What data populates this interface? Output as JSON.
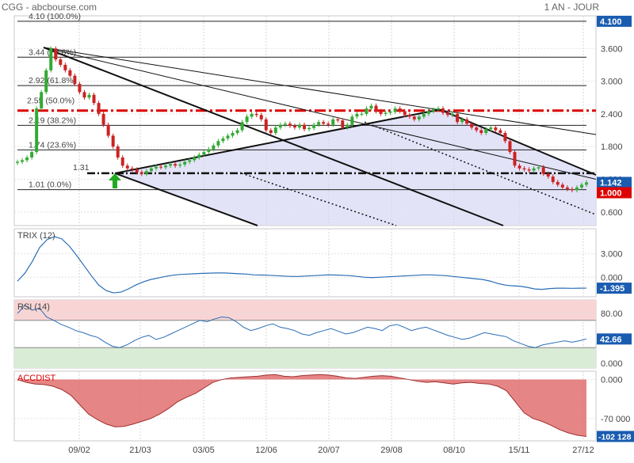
{
  "header": {
    "title": "CGG - abcbourse.com",
    "period": "1 AN - JOUR"
  },
  "colors": {
    "up_candle": "#33aa33",
    "down_candle": "#cc2222",
    "indicator_line": "#2a6db5",
    "fib_red": "#dd0000",
    "channel_fill": "#dcdcf6",
    "rsi_overbought": "#f8d4d4",
    "rsi_oversold": "#d9ecd6",
    "accdist_fill": "#e07070",
    "badge_bg": "#1a5cb0",
    "badge_red": "#dd0000",
    "badge_green": "#22aa00"
  },
  "chart_data": [
    {
      "type": "candlestick",
      "x_ticks": [
        "09/02",
        "21/03",
        "03/05",
        "12/06",
        "20/07",
        "29/08",
        "08/10",
        "15/11",
        "27/12"
      ],
      "y_ticks": [
        "3.600",
        "3.000",
        "2.400",
        "1.800",
        "1.200",
        "0.600"
      ],
      "ylim": [
        0.35,
        4.2
      ],
      "fibonacci": [
        {
          "value": 4.1,
          "label": "4.10  (100.0%)"
        },
        {
          "value": 3.44,
          "label": "3.44  (78.6%)"
        },
        {
          "value": 2.92,
          "label": "2.92  (61.8%)"
        },
        {
          "value": 2.55,
          "label": "2.55  (50.0%)"
        },
        {
          "value": 2.19,
          "label": "2.19  (38.2%)"
        },
        {
          "value": 1.74,
          "label": "1.74  (23.6%)"
        },
        {
          "value": 1.01,
          "label": "1.01  (0.0%)"
        }
      ],
      "marker_label": "1.31",
      "last_close": "1.142",
      "price_badges": [
        "4.100",
        "1.142",
        "1.000"
      ],
      "close_series": [
        1.52,
        1.55,
        1.6,
        1.7,
        2.5,
        2.8,
        3.2,
        3.6,
        3.4,
        3.3,
        3.2,
        3.1,
        2.95,
        2.8,
        2.7,
        2.75,
        2.6,
        2.4,
        2.2,
        2.0,
        1.8,
        1.6,
        1.45,
        1.4,
        1.38,
        1.33,
        1.3,
        1.35,
        1.4,
        1.43,
        1.42,
        1.45,
        1.48,
        1.45,
        1.47,
        1.52,
        1.55,
        1.6,
        1.65,
        1.7,
        1.75,
        1.82,
        1.9,
        1.95,
        2.0,
        2.05,
        2.1,
        2.25,
        2.35,
        2.4,
        2.38,
        2.3,
        2.1,
        2.05,
        2.15,
        2.2,
        2.22,
        2.18,
        2.15,
        2.2,
        2.12,
        2.14,
        2.2,
        2.25,
        2.22,
        2.2,
        2.3,
        2.28,
        2.15,
        2.2,
        2.35,
        2.4,
        2.4,
        2.5,
        2.55,
        2.45,
        2.4,
        2.42,
        2.44,
        2.5,
        2.45,
        2.38,
        2.35,
        2.3,
        2.35,
        2.4,
        2.45,
        2.48,
        2.5,
        2.42,
        2.38,
        2.4,
        2.25,
        2.3,
        2.22,
        2.15,
        2.1,
        2.05,
        2.12,
        2.15,
        2.1,
        2.05,
        1.9,
        1.7,
        1.45,
        1.4,
        1.38,
        1.36,
        1.4,
        1.42,
        1.3,
        1.25,
        1.15,
        1.1,
        1.05,
        1.02,
        1.0,
        1.05,
        1.1,
        1.142
      ]
    },
    {
      "type": "line",
      "title": "TRIX (12)",
      "y_ticks": [
        "3.000",
        "0.000"
      ],
      "ylim": [
        -2.5,
        6.2
      ],
      "last_value": "-1.395",
      "values": [
        -0.5,
        0.5,
        2.0,
        3.8,
        4.8,
        5.2,
        4.9,
        4.0,
        2.8,
        1.5,
        0.2,
        -1.0,
        -1.7,
        -2.0,
        -1.9,
        -1.5,
        -1.0,
        -0.6,
        -0.3,
        -0.1,
        0.1,
        0.25,
        0.35,
        0.4,
        0.45,
        0.5,
        0.52,
        0.55,
        0.55,
        0.5,
        0.45,
        0.4,
        0.3,
        0.28,
        0.25,
        0.2,
        0.15,
        0.1,
        0.1,
        0.15,
        0.2,
        0.25,
        0.3,
        0.28,
        0.25,
        0.2,
        0.1,
        0.0,
        -0.05,
        0.0,
        0.05,
        0.1,
        0.15,
        0.2,
        0.25,
        0.3,
        0.3,
        0.25,
        0.2,
        0.1,
        0.0,
        -0.1,
        -0.2,
        -0.3,
        -0.5,
        -0.8,
        -1.0,
        -1.1,
        -1.15,
        -1.3,
        -1.5,
        -1.55,
        -1.45,
        -1.4,
        -1.4,
        -1.42,
        -1.4,
        -1.395
      ]
    },
    {
      "type": "line",
      "title": "RSI (14)",
      "y_ticks": [
        "80.00",
        "0.000"
      ],
      "ylim": [
        0,
        100
      ],
      "last_value": "42.66",
      "values": [
        80,
        92,
        85,
        88,
        75,
        70,
        64,
        60,
        55,
        52,
        48,
        45,
        38,
        32,
        30,
        34,
        40,
        45,
        48,
        42,
        45,
        50,
        55,
        60,
        65,
        70,
        68,
        72,
        75,
        74,
        68,
        60,
        55,
        58,
        62,
        65,
        60,
        58,
        55,
        50,
        48,
        52,
        55,
        58,
        54,
        50,
        52,
        56,
        60,
        58,
        55,
        62,
        64,
        60,
        55,
        58,
        60,
        56,
        52,
        48,
        45,
        42,
        44,
        48,
        52,
        50,
        48,
        46,
        40,
        36,
        32,
        30,
        34,
        36,
        38,
        40,
        38,
        40,
        42.66
      ]
    },
    {
      "type": "area",
      "title": "ACCDIST",
      "y_ticks": [
        "0.000",
        "-70 000"
      ],
      "ylim": [
        -110000,
        15000
      ],
      "last_value": "-102 128",
      "values": [
        0,
        -5000,
        -8000,
        -9000,
        -12000,
        -18000,
        -28000,
        -45000,
        -62000,
        -72000,
        -80000,
        -85000,
        -84000,
        -80000,
        -75000,
        -70000,
        -62000,
        -52000,
        -40000,
        -32000,
        -25000,
        -15000,
        -5000,
        0,
        3000,
        4000,
        5000,
        6000,
        8000,
        9000,
        6000,
        5000,
        7000,
        8000,
        9000,
        8000,
        6000,
        3000,
        2000,
        4000,
        6000,
        7000,
        6000,
        3000,
        0,
        -3000,
        -5000,
        -4000,
        -6000,
        -8000,
        -6000,
        -5000,
        -7000,
        -8000,
        -12000,
        -20000,
        -40000,
        -60000,
        -70000,
        -75000,
        -82000,
        -90000,
        -96000,
        -100000,
        -102128
      ]
    }
  ]
}
